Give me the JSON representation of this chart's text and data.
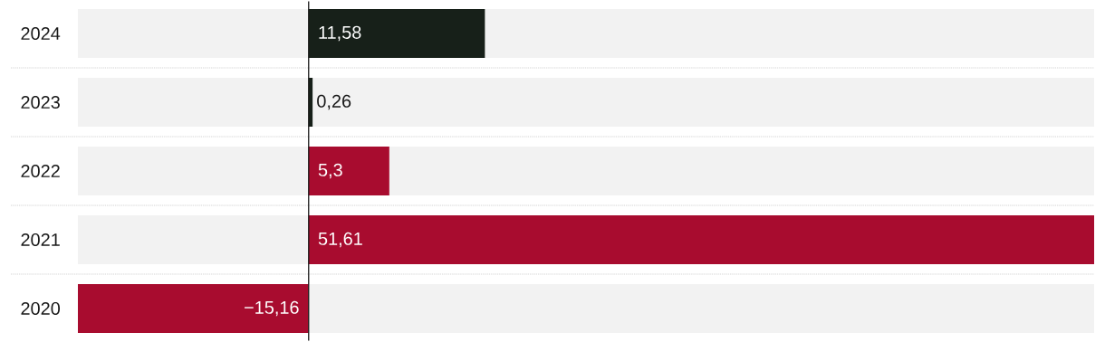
{
  "chart_data": {
    "type": "bar",
    "orientation": "horizontal",
    "categories": [
      "2024",
      "2023",
      "2022",
      "2021",
      "2020"
    ],
    "values": [
      11.58,
      0.26,
      5.3,
      51.61,
      -15.16
    ],
    "colors": [
      "#172019",
      "#172019",
      "#a80c2f",
      "#a80c2f",
      "#a80c2f"
    ],
    "value_labels": [
      "11,58",
      "0,26",
      "5,3",
      "51,61",
      "−15,16"
    ],
    "xlim": [
      -15.16,
      51.61
    ],
    "grid": "y"
  }
}
